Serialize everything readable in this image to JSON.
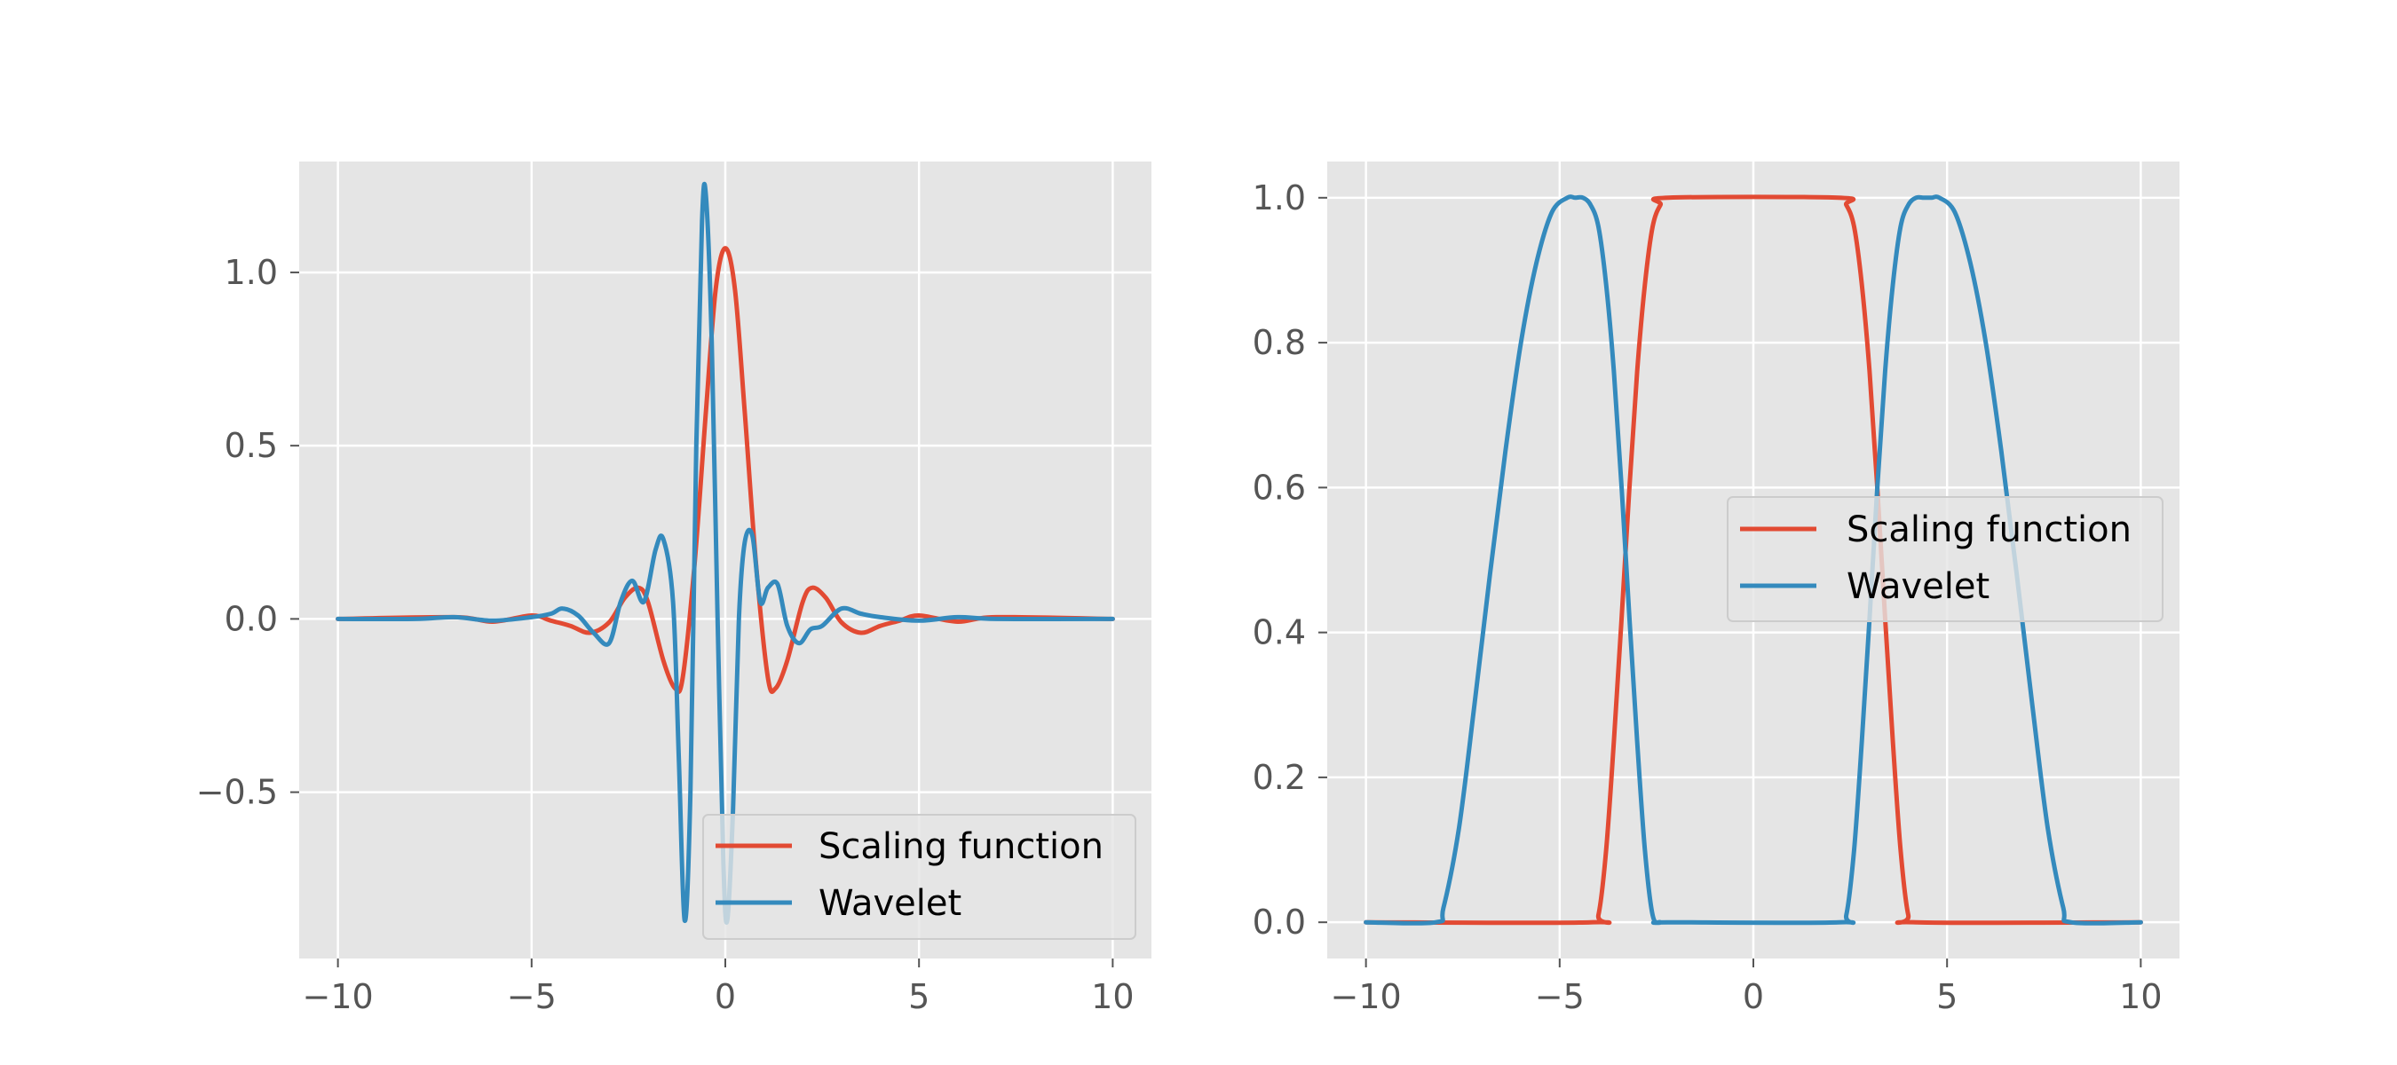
{
  "chart_data": [
    {
      "type": "line",
      "title": "",
      "xlabel": "",
      "ylabel": "",
      "xlim": [
        -11,
        11
      ],
      "ylim": [
        -0.98,
        1.32
      ],
      "xticks": [
        -10,
        -5,
        0,
        5,
        10
      ],
      "xtick_labels": [
        "−10",
        "−5",
        "0",
        "5",
        "10"
      ],
      "yticks": [
        -0.5,
        0.0,
        0.5,
        1.0
      ],
      "ytick_labels": [
        "−0.5",
        "0.0",
        "0.5",
        "1.0"
      ],
      "grid": true,
      "legend_position": "lower right",
      "series": [
        {
          "name": "Scaling function",
          "color": "#E24A33",
          "x": [
            -10,
            -7,
            -6,
            -5,
            -4.5,
            -4,
            -3.5,
            -3,
            -2.6,
            -2.25,
            -2,
            -1.6,
            -1.3,
            -1.1,
            -0.8,
            -0.5,
            -0.25,
            0,
            0.25,
            0.5,
            0.8,
            1.1,
            1.3,
            1.6,
            2,
            2.25,
            2.6,
            3,
            3.5,
            4,
            4.5,
            5,
            6,
            7,
            10
          ],
          "y": [
            0,
            0.005,
            -0.008,
            0.01,
            -0.005,
            -0.02,
            -0.04,
            -0.01,
            0.06,
            0.09,
            0.05,
            -0.12,
            -0.2,
            -0.17,
            0.15,
            0.6,
            0.95,
            1.07,
            0.95,
            0.6,
            0.15,
            -0.17,
            -0.2,
            -0.12,
            0.05,
            0.09,
            0.06,
            -0.01,
            -0.04,
            -0.02,
            -0.005,
            0.01,
            -0.008,
            0.005,
            0
          ]
        },
        {
          "name": "Wavelet",
          "color": "#348ABD",
          "x": [
            -10,
            -8,
            -7,
            -6,
            -5,
            -4.5,
            -4.2,
            -3.8,
            -3.4,
            -3,
            -2.7,
            -2.4,
            -2.1,
            -1.8,
            -1.6,
            -1.35,
            -1.2,
            -1.05,
            -0.9,
            -0.75,
            -0.6,
            -0.5,
            -0.35,
            -0.2,
            -0.05,
            0.05,
            0.2,
            0.35,
            0.5,
            0.7,
            0.9,
            1.1,
            1.35,
            1.6,
            1.9,
            2.2,
            2.5,
            3,
            3.5,
            4,
            5,
            6,
            7,
            10
          ],
          "y": [
            0,
            0,
            0.005,
            -0.005,
            0.005,
            0.015,
            0.03,
            0.01,
            -0.04,
            -0.07,
            0.05,
            0.11,
            0.05,
            0.2,
            0.23,
            0.05,
            -0.4,
            -0.87,
            -0.5,
            0.5,
            1.15,
            1.22,
            0.8,
            0.0,
            -0.7,
            -0.87,
            -0.55,
            0.0,
            0.22,
            0.24,
            0.05,
            0.09,
            0.1,
            -0.02,
            -0.07,
            -0.03,
            -0.02,
            0.03,
            0.015,
            0.005,
            -0.005,
            0.005,
            0,
            0
          ]
        }
      ]
    },
    {
      "type": "line",
      "title": "",
      "xlabel": "",
      "ylabel": "",
      "xlim": [
        -11,
        11
      ],
      "ylim": [
        -0.05,
        1.05
      ],
      "xticks": [
        -10,
        -5,
        0,
        5,
        10
      ],
      "xtick_labels": [
        "−10",
        "−5",
        "0",
        "5",
        "10"
      ],
      "yticks": [
        0.0,
        0.2,
        0.4,
        0.6,
        0.8,
        1.0
      ],
      "ytick_labels": [
        "0.0",
        "0.2",
        "0.4",
        "0.6",
        "0.8",
        "1.0"
      ],
      "grid": true,
      "legend_position": "center right",
      "series": [
        {
          "name": "Scaling function",
          "color": "#E24A33",
          "x": [
            -10,
            -4.2,
            -4.0,
            -3.8,
            -3.6,
            -3.4,
            -3.2,
            -3.0,
            -2.8,
            -2.6,
            -2.4,
            -2.2,
            2.2,
            2.4,
            2.6,
            2.8,
            3.0,
            3.2,
            3.4,
            3.6,
            3.8,
            4.0,
            4.2,
            10
          ],
          "y": [
            0,
            0,
            0.01,
            0.1,
            0.25,
            0.42,
            0.6,
            0.76,
            0.88,
            0.96,
            0.99,
            1.0,
            1.0,
            0.99,
            0.96,
            0.88,
            0.76,
            0.6,
            0.42,
            0.25,
            0.1,
            0.01,
            0,
            0
          ]
        },
        {
          "name": "Wavelet",
          "color": "#348ABD",
          "x": [
            -10,
            -8.2,
            -8.0,
            -7.6,
            -7.2,
            -6.8,
            -6.4,
            -6.0,
            -5.6,
            -5.2,
            -4.8,
            -4.6,
            -4.4,
            -4.2,
            -4.0,
            -3.8,
            -3.6,
            -3.4,
            -3.2,
            -3.0,
            -2.8,
            -2.6,
            -2.4,
            -2.2,
            2.2,
            2.4,
            2.6,
            2.8,
            3.0,
            3.2,
            3.4,
            3.6,
            3.8,
            4.0,
            4.2,
            4.4,
            4.6,
            4.8,
            5.2,
            5.6,
            6.0,
            6.4,
            6.8,
            7.2,
            7.6,
            8.0,
            8.2,
            10
          ],
          "y": [
            0,
            0,
            0.02,
            0.13,
            0.3,
            0.48,
            0.65,
            0.8,
            0.91,
            0.98,
            1.0,
            1.0,
            1.0,
            0.99,
            0.96,
            0.88,
            0.76,
            0.6,
            0.42,
            0.25,
            0.1,
            0.01,
            0,
            0,
            0,
            0.01,
            0.1,
            0.25,
            0.42,
            0.6,
            0.76,
            0.88,
            0.96,
            0.99,
            1.0,
            1.0,
            1.0,
            1.0,
            0.98,
            0.91,
            0.8,
            0.65,
            0.48,
            0.3,
            0.13,
            0.02,
            0,
            0
          ]
        }
      ]
    }
  ]
}
